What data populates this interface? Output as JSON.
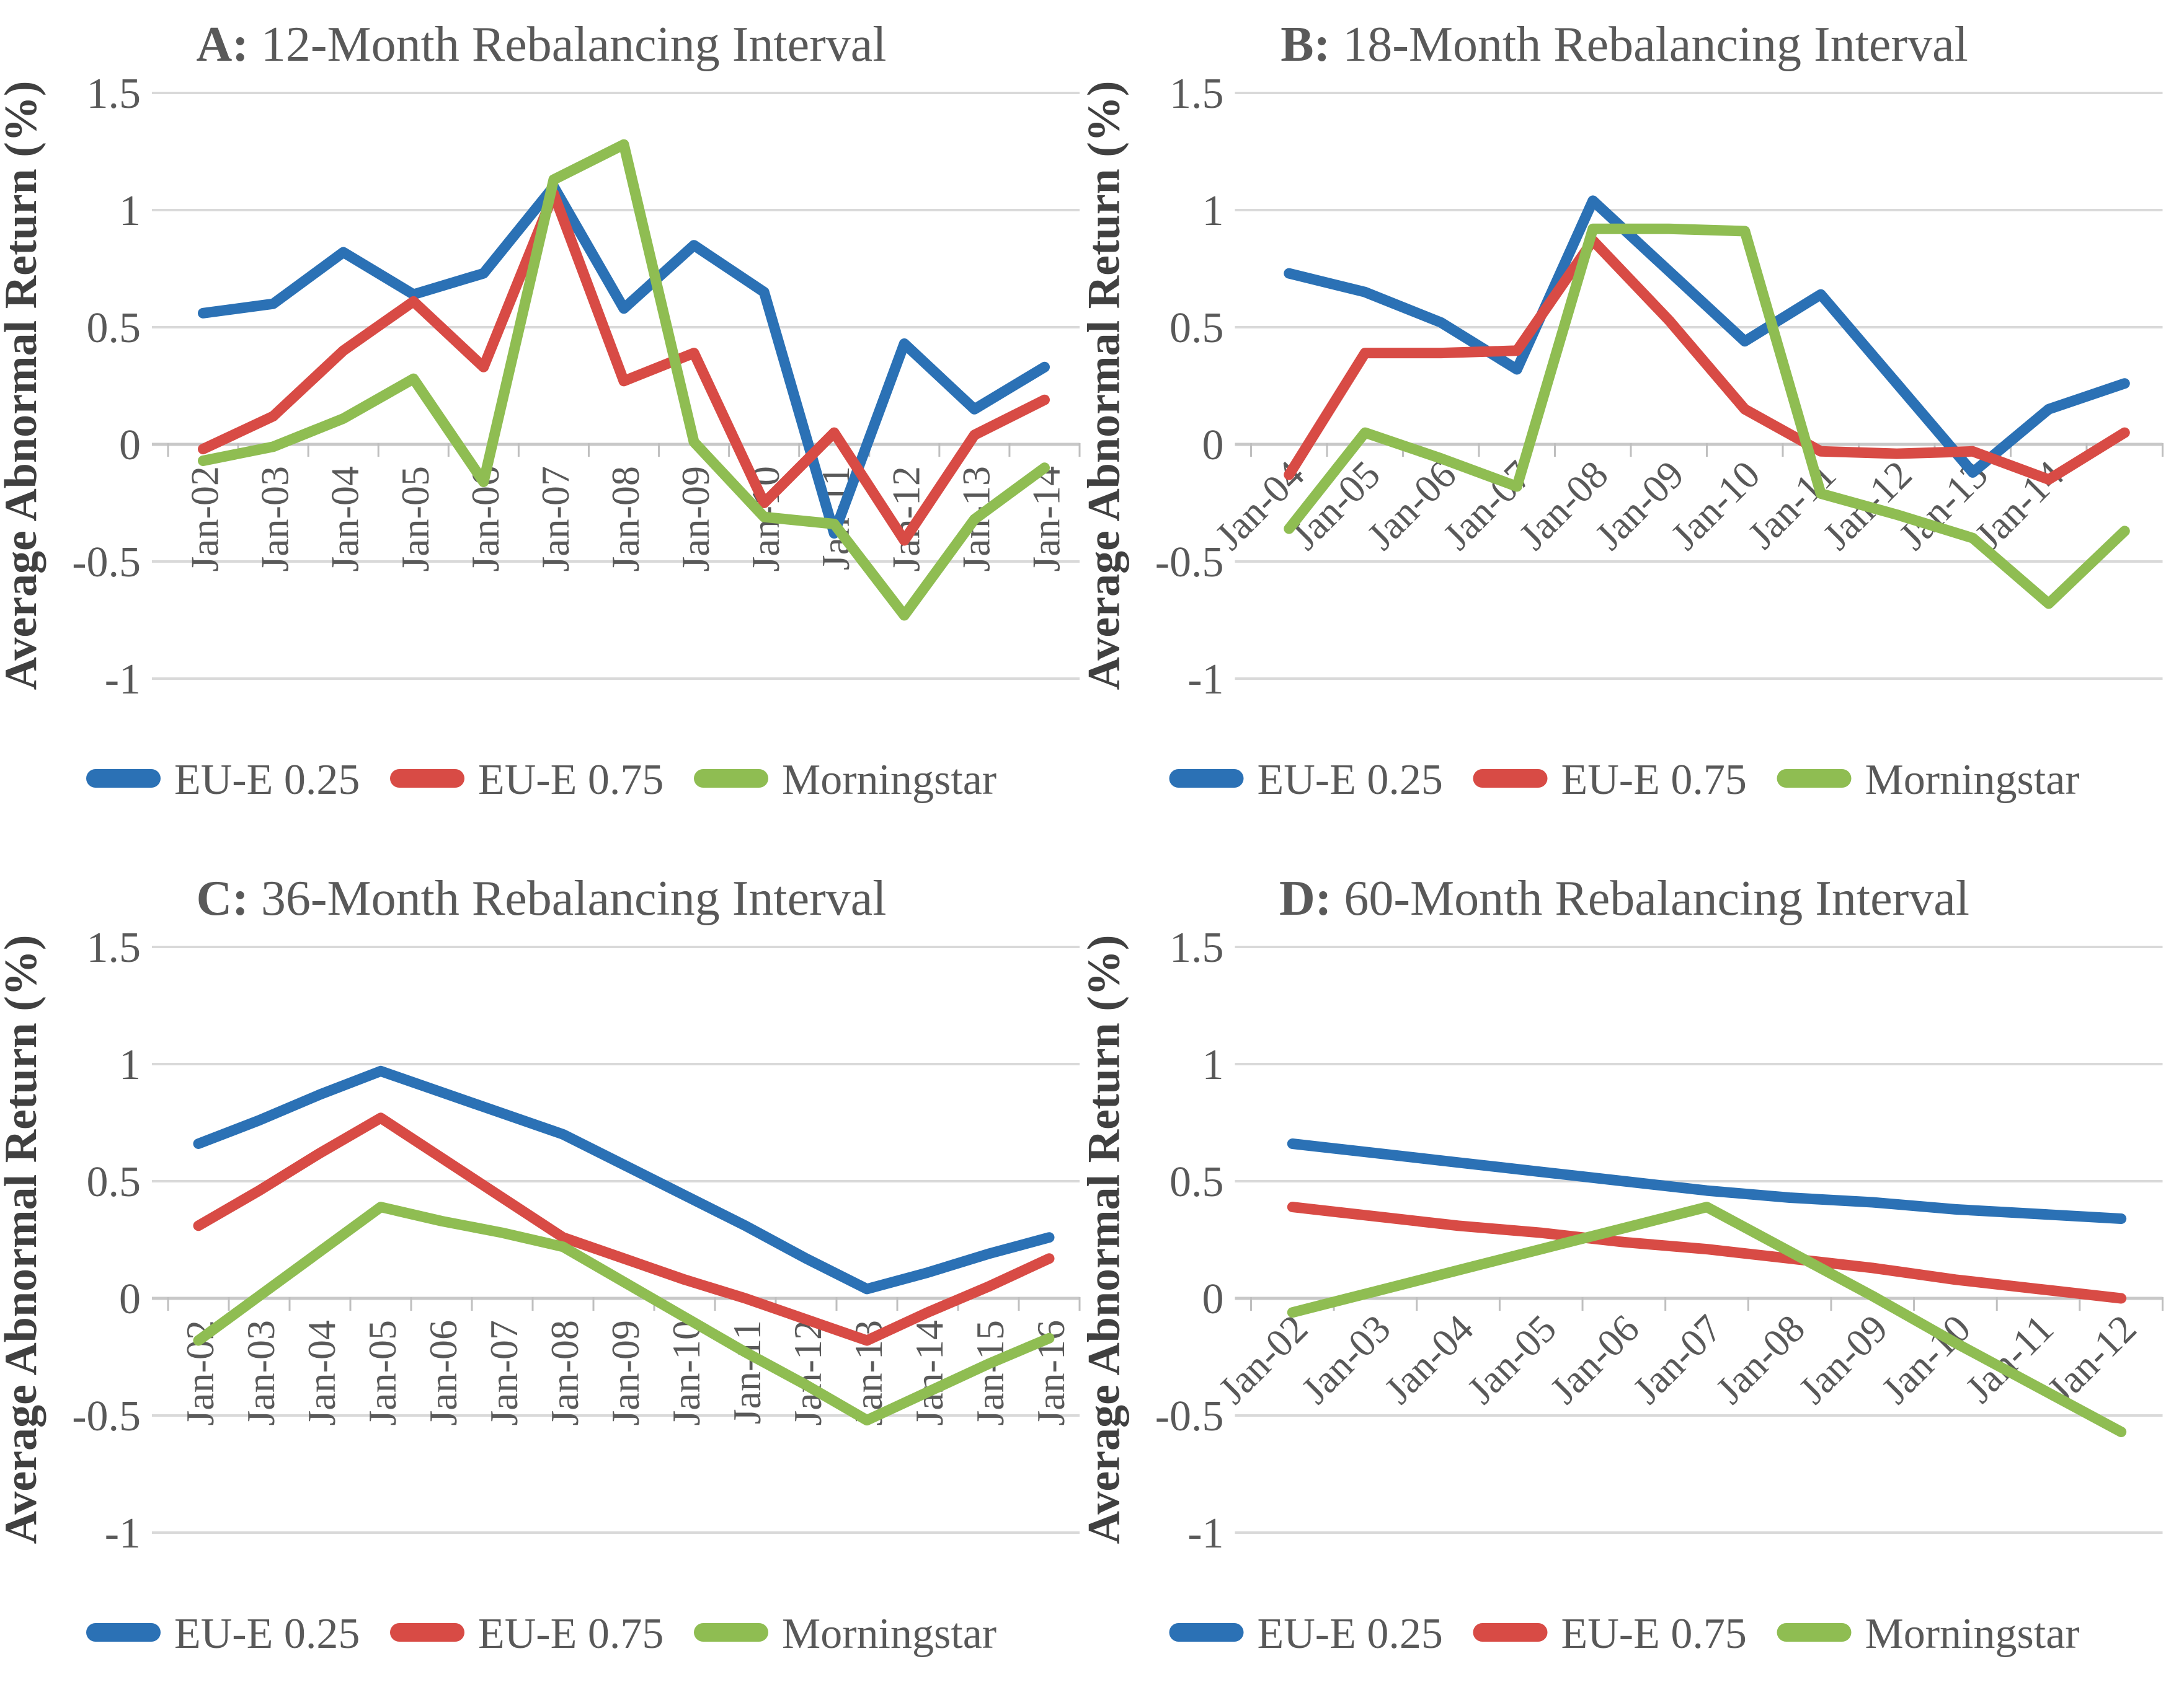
{
  "figure": {
    "background": "#FFFFFF",
    "text_color": "#595959",
    "axis_label_color": "#404040",
    "grid_color": "#D9D9D9",
    "axis_line_color": "#C8C8C8",
    "tick_mark_color": "#BFBFBF",
    "y_axis_label": "Average Abnormal Return (%)",
    "y_tick_labels": [
      "1.5",
      "1",
      "0.5",
      "0",
      "-0.5",
      "-1"
    ],
    "legend_labels": [
      "EU-E 0.25",
      "EU-E 0.75",
      "Morningstar"
    ],
    "series_colors": {
      "EU-E 0.25": "#2B71B5",
      "EU-E 0.75": "#D84B45",
      "Morningstar": "#8FBD52"
    }
  },
  "chart_data": [
    {
      "id": "A",
      "type": "line",
      "title_prefix": "A:",
      "title": "12-Month Rebalancing Interval",
      "ylabel": "Average Abnormal Return (%)",
      "ylim": [
        -1,
        1.5
      ],
      "ytick_step": 0.5,
      "grid": true,
      "legend_position": "bottom",
      "x_label_rotation": 90,
      "categories": [
        "Jan-02",
        "Jan-03",
        "Jan-04",
        "Jan-05",
        "Jan-06",
        "Jan-07",
        "Jan-08",
        "Jan-09",
        "Jan-10",
        "Jan-11",
        "Jan-12",
        "Jan-13",
        "Jan-14"
      ],
      "series": [
        {
          "name": "EU-E 0.25",
          "values": [
            0.56,
            0.6,
            0.82,
            0.64,
            0.73,
            1.1,
            0.58,
            0.85,
            0.65,
            -0.38,
            0.43,
            0.15,
            0.33
          ]
        },
        {
          "name": "EU-E 0.75",
          "values": [
            -0.02,
            0.12,
            0.4,
            0.61,
            0.33,
            1.07,
            0.27,
            0.39,
            -0.25,
            0.05,
            -0.41,
            0.04,
            0.19
          ]
        },
        {
          "name": "Morningstar",
          "values": [
            -0.07,
            -0.01,
            0.11,
            0.28,
            -0.16,
            1.13,
            1.28,
            0.01,
            -0.31,
            -0.34,
            -0.73,
            -0.32,
            -0.1
          ]
        }
      ]
    },
    {
      "id": "B",
      "type": "line",
      "title_prefix": "B:",
      "title": "18-Month Rebalancing Interval",
      "ylabel": "Average Abnormal Return (%)",
      "ylim": [
        -1,
        1.5
      ],
      "ytick_step": 0.5,
      "grid": true,
      "legend_position": "bottom",
      "x_label_rotation": 45,
      "categories": [
        "Jan-04",
        "Jan-05",
        "Jan-06",
        "Jan-07",
        "Jan-08",
        "Jan-09",
        "Jan-10",
        "Jan-11",
        "Jan-12",
        "Jan-13",
        "Jan-14",
        ""
      ],
      "series": [
        {
          "name": "EU-E 0.25",
          "values": [
            0.73,
            0.65,
            0.52,
            0.32,
            1.04,
            0.74,
            0.44,
            0.64,
            0.26,
            -0.12,
            0.15,
            0.26
          ]
        },
        {
          "name": "EU-E 0.75",
          "values": [
            -0.13,
            0.39,
            0.39,
            0.4,
            0.87,
            0.53,
            0.15,
            -0.03,
            -0.04,
            -0.03,
            -0.15,
            0.05
          ]
        },
        {
          "name": "Morningstar",
          "values": [
            -0.36,
            0.05,
            -0.06,
            -0.18,
            0.92,
            0.92,
            0.91,
            -0.21,
            -0.3,
            -0.4,
            -0.68,
            -0.37
          ]
        }
      ]
    },
    {
      "id": "C",
      "type": "line",
      "title_prefix": "C:",
      "title": "36-Month Rebalancing Interval",
      "ylabel": "Average Abnormal Return (%)",
      "ylim": [
        -1,
        1.5
      ],
      "ytick_step": 0.5,
      "grid": true,
      "legend_position": "bottom",
      "x_label_rotation": 90,
      "categories": [
        "Jan-02",
        "Jan-03",
        "Jan-04",
        "Jan-05",
        "Jan-06",
        "Jan-07",
        "Jan-08",
        "Jan-09",
        "Jan-10",
        "Jan-11",
        "Jan-12",
        "Jan-13",
        "Jan-14",
        "Jan-15",
        "Jan-16"
      ],
      "series": [
        {
          "name": "EU-E 0.25",
          "values": [
            0.66,
            0.76,
            0.87,
            0.97,
            0.88,
            0.79,
            0.7,
            0.57,
            0.44,
            0.31,
            0.17,
            0.04,
            0.11,
            0.19,
            0.26
          ]
        },
        {
          "name": "EU-E 0.75",
          "values": [
            0.31,
            0.46,
            0.62,
            0.77,
            0.6,
            0.43,
            0.26,
            0.17,
            0.08,
            0.0,
            -0.09,
            -0.18,
            -0.06,
            0.05,
            0.17
          ]
        },
        {
          "name": "Morningstar",
          "values": [
            -0.18,
            0.01,
            0.2,
            0.39,
            0.33,
            0.28,
            0.22,
            0.07,
            -0.08,
            -0.23,
            -0.37,
            -0.52,
            -0.4,
            -0.28,
            -0.17
          ]
        }
      ]
    },
    {
      "id": "D",
      "type": "line",
      "title_prefix": "D:",
      "title": "60-Month Rebalancing Interval",
      "ylabel": "Average Abnormal Return (%)",
      "ylim": [
        -1,
        1.5
      ],
      "ytick_step": 0.5,
      "grid": true,
      "legend_position": "bottom",
      "x_label_rotation": 45,
      "categories": [
        "Jan-02",
        "Jan-03",
        "Jan-04",
        "Jan-05",
        "Jan-06",
        "Jan-07",
        "Jan-08",
        "Jan-09",
        "Jan-10",
        "Jan-11",
        "Jan-12"
      ],
      "series": [
        {
          "name": "EU-E 0.25",
          "values": [
            0.66,
            0.62,
            0.58,
            0.54,
            0.5,
            0.46,
            0.43,
            0.41,
            0.38,
            0.36,
            0.34
          ]
        },
        {
          "name": "EU-E 0.75",
          "values": [
            0.39,
            0.35,
            0.31,
            0.28,
            0.24,
            0.21,
            0.17,
            0.13,
            0.08,
            0.04,
            0.0
          ]
        },
        {
          "name": "Morningstar",
          "values": [
            -0.06,
            0.03,
            0.12,
            0.21,
            0.3,
            0.39,
            0.2,
            0.01,
            -0.19,
            -0.38,
            -0.57
          ]
        }
      ]
    }
  ]
}
